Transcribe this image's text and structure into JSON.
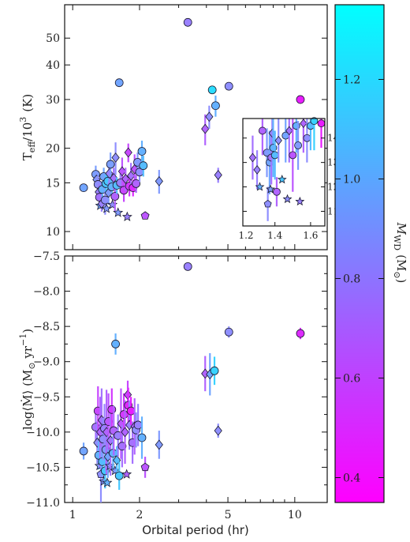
{
  "chart_data": [
    {
      "type": "scatter",
      "panel": "top",
      "ylabel_main": "T",
      "ylabel_sub": "eff",
      "ylabel_rest": "/10",
      "ylabel_sup": "3",
      "ylabel_unit": "(K)",
      "x_scale": "log",
      "y_scale": "log",
      "xlim": [
        0.92,
        14.0
      ],
      "ylim": [
        8.6,
        66
      ],
      "y_ticks": [
        10,
        15,
        20,
        30,
        40,
        50
      ],
      "y_tick_labels": [
        "10",
        "15",
        "20",
        "30",
        "40",
        "50"
      ],
      "points": [
        {
          "x": 1.12,
          "y": 14.4,
          "m": 0.95,
          "s": "c",
          "e": 0
        },
        {
          "x": 1.27,
          "y": 16.1,
          "m": 0.92,
          "s": "c",
          "e": 1.2
        },
        {
          "x": 1.28,
          "y": 15.4,
          "m": 0.88,
          "s": "d",
          "e": 1.0
        },
        {
          "x": 1.3,
          "y": 14.8,
          "m": 0.85,
          "s": "c",
          "e": 1.1
        },
        {
          "x": 1.31,
          "y": 13.9,
          "m": 0.8,
          "s": "d",
          "e": 1.0
        },
        {
          "x": 1.32,
          "y": 13.3,
          "m": 0.75,
          "s": "c",
          "e": 1.0
        },
        {
          "x": 1.33,
          "y": 12.4,
          "m": 0.95,
          "s": "st",
          "e": 0
        },
        {
          "x": 1.35,
          "y": 12.6,
          "m": 0.8,
          "s": "d",
          "e": 0.8
        },
        {
          "x": 1.36,
          "y": 14.2,
          "m": 1.0,
          "s": "c",
          "e": 1.0
        },
        {
          "x": 1.38,
          "y": 15.8,
          "m": 0.95,
          "s": "c",
          "e": 1.2
        },
        {
          "x": 1.4,
          "y": 13.0,
          "m": 0.85,
          "s": "c",
          "e": 1.5
        },
        {
          "x": 1.41,
          "y": 14.9,
          "m": 1.08,
          "s": "c",
          "e": 1.2
        },
        {
          "x": 1.42,
          "y": 12.1,
          "m": 0.9,
          "s": "st",
          "e": 0
        },
        {
          "x": 1.44,
          "y": 15.2,
          "m": 1.1,
          "s": "c",
          "e": 1.0
        },
        {
          "x": 1.45,
          "y": 13.8,
          "m": 0.9,
          "s": "d",
          "e": 1.3
        },
        {
          "x": 1.46,
          "y": 16.2,
          "m": 0.8,
          "s": "d",
          "e": 1.5
        },
        {
          "x": 1.48,
          "y": 17.5,
          "m": 0.92,
          "s": "c",
          "e": 1.8
        },
        {
          "x": 1.5,
          "y": 14.5,
          "m": 1.0,
          "s": "c",
          "e": 1.2
        },
        {
          "x": 1.51,
          "y": 12.5,
          "m": 0.85,
          "s": "st",
          "e": 0
        },
        {
          "x": 1.53,
          "y": 15.6,
          "m": 0.75,
          "s": "d",
          "e": 1.4
        },
        {
          "x": 1.55,
          "y": 13.4,
          "m": 0.7,
          "s": "c",
          "e": 1.6
        },
        {
          "x": 1.56,
          "y": 18.5,
          "m": 0.85,
          "s": "d",
          "e": 2.5
        },
        {
          "x": 1.58,
          "y": 14.7,
          "m": 1.05,
          "s": "c",
          "e": 1.0
        },
        {
          "x": 1.6,
          "y": 11.7,
          "m": 0.9,
          "s": "st",
          "e": 0
        },
        {
          "x": 1.62,
          "y": 34.5,
          "m": 0.95,
          "s": "c",
          "e": 0
        },
        {
          "x": 1.64,
          "y": 15.0,
          "m": 0.8,
          "s": "c",
          "e": 1.2
        },
        {
          "x": 1.67,
          "y": 16.5,
          "m": 0.65,
          "s": "d",
          "e": 2.0
        },
        {
          "x": 1.7,
          "y": 14.1,
          "m": 0.6,
          "s": "c",
          "e": 1.3
        },
        {
          "x": 1.73,
          "y": 15.5,
          "m": 0.7,
          "s": "d",
          "e": 1.5
        },
        {
          "x": 1.76,
          "y": 11.3,
          "m": 0.8,
          "s": "st",
          "e": 0
        },
        {
          "x": 1.78,
          "y": 19.3,
          "m": 0.6,
          "s": "d",
          "e": 1.5
        },
        {
          "x": 1.8,
          "y": 14.6,
          "m": 0.55,
          "s": "c",
          "e": 1.2
        },
        {
          "x": 1.83,
          "y": 15.9,
          "m": 0.75,
          "s": "d",
          "e": 1.8
        },
        {
          "x": 1.87,
          "y": 14.4,
          "m": 0.5,
          "s": "c",
          "e": 1.0
        },
        {
          "x": 1.9,
          "y": 16.8,
          "m": 0.65,
          "s": "d",
          "e": 2.2
        },
        {
          "x": 1.93,
          "y": 14.9,
          "m": 0.7,
          "s": "c",
          "e": 1.1
        },
        {
          "x": 1.96,
          "y": 17.8,
          "m": 0.9,
          "s": "c",
          "e": 1.5
        },
        {
          "x": 2.0,
          "y": 16.4,
          "m": 0.85,
          "s": "c",
          "e": 1.3
        },
        {
          "x": 2.05,
          "y": 19.5,
          "m": 1.0,
          "s": "c",
          "e": 1.8
        },
        {
          "x": 2.08,
          "y": 17.3,
          "m": 1.05,
          "s": "c",
          "e": 1.5
        },
        {
          "x": 2.12,
          "y": 11.4,
          "m": 0.65,
          "s": "p",
          "e": 0
        },
        {
          "x": 2.45,
          "y": 15.2,
          "m": 0.9,
          "s": "d",
          "e": 1.5
        },
        {
          "x": 3.3,
          "y": 57.0,
          "m": 0.8,
          "s": "c",
          "e": 0
        },
        {
          "x": 3.95,
          "y": 23.5,
          "m": 0.7,
          "s": "d",
          "e": 3.0
        },
        {
          "x": 4.12,
          "y": 26.0,
          "m": 0.85,
          "s": "d",
          "e": 2.5
        },
        {
          "x": 4.25,
          "y": 32.5,
          "m": 1.2,
          "s": "c",
          "e": 0
        },
        {
          "x": 4.4,
          "y": 28.5,
          "m": 1.0,
          "s": "c",
          "e": 2.5
        },
        {
          "x": 4.52,
          "y": 16.0,
          "m": 0.8,
          "s": "d",
          "e": 1.0
        },
        {
          "x": 5.05,
          "y": 33.5,
          "m": 0.85,
          "s": "c",
          "e": 0
        },
        {
          "x": 10.6,
          "y": 30.0,
          "m": 0.45,
          "s": "c",
          "e": 0
        }
      ]
    },
    {
      "type": "scatter",
      "panel": "inset",
      "x_scale": "linear",
      "y_scale": "linear",
      "xlim": [
        1.22,
        1.68
      ],
      "ylim": [
        10.4,
        14.8
      ],
      "x_ticks": [
        1.2,
        1.4,
        1.6
      ],
      "x_tick_labels": [
        "1.2",
        "1.4",
        "1.6"
      ],
      "y_ticks": [
        11,
        12,
        13,
        14
      ],
      "y_tick_labels": [
        "11",
        "12",
        "13",
        "14"
      ],
      "points": [
        {
          "x": 1.275,
          "y": 13.2,
          "m": 0.75,
          "s": "d",
          "e": 0.9
        },
        {
          "x": 1.3,
          "y": 12.7,
          "m": 0.8,
          "s": "d",
          "e": 0.8
        },
        {
          "x": 1.315,
          "y": 12.0,
          "m": 1.0,
          "s": "st",
          "e": 0
        },
        {
          "x": 1.33,
          "y": 14.3,
          "m": 0.7,
          "s": "c",
          "e": 1.0
        },
        {
          "x": 1.355,
          "y": 13.4,
          "m": 0.9,
          "s": "c",
          "e": 1.0
        },
        {
          "x": 1.36,
          "y": 11.3,
          "m": 0.85,
          "s": "p",
          "e": 0.7
        },
        {
          "x": 1.37,
          "y": 13.0,
          "m": 0.95,
          "s": "c",
          "e": 1.3
        },
        {
          "x": 1.375,
          "y": 11.9,
          "m": 0.92,
          "s": "st",
          "e": 0
        },
        {
          "x": 1.38,
          "y": 13.2,
          "m": 0.75,
          "s": "c",
          "e": 1.1
        },
        {
          "x": 1.385,
          "y": 14.2,
          "m": 0.8,
          "s": "d",
          "e": 1.3
        },
        {
          "x": 1.39,
          "y": 13.6,
          "m": 1.0,
          "s": "c",
          "e": 1.2
        },
        {
          "x": 1.4,
          "y": 13.3,
          "m": 1.05,
          "s": "c",
          "e": 1.0
        },
        {
          "x": 1.41,
          "y": 11.8,
          "m": 0.7,
          "s": "c",
          "e": 0.6
        },
        {
          "x": 1.42,
          "y": 13.9,
          "m": 0.85,
          "s": "d",
          "e": 0.9
        },
        {
          "x": 1.44,
          "y": 12.3,
          "m": 1.1,
          "s": "st",
          "e": 0
        },
        {
          "x": 1.46,
          "y": 14.1,
          "m": 0.95,
          "s": "c",
          "e": 1.1
        },
        {
          "x": 1.47,
          "y": 11.5,
          "m": 0.85,
          "s": "st",
          "e": 0
        },
        {
          "x": 1.48,
          "y": 14.3,
          "m": 0.75,
          "s": "d",
          "e": 1.3
        },
        {
          "x": 1.5,
          "y": 13.3,
          "m": 0.65,
          "s": "c",
          "e": 1.5
        },
        {
          "x": 1.52,
          "y": 14.5,
          "m": 1.0,
          "s": "c",
          "e": 1.1
        },
        {
          "x": 1.53,
          "y": 13.7,
          "m": 0.9,
          "s": "c",
          "e": 1.0
        },
        {
          "x": 1.54,
          "y": 11.4,
          "m": 0.8,
          "s": "st",
          "e": 0
        },
        {
          "x": 1.56,
          "y": 14.6,
          "m": 0.7,
          "s": "d",
          "e": 1.2
        },
        {
          "x": 1.58,
          "y": 14.0,
          "m": 0.85,
          "s": "c",
          "e": 1.0
        },
        {
          "x": 1.6,
          "y": 14.5,
          "m": 1.05,
          "s": "c",
          "e": 1.0
        },
        {
          "x": 1.62,
          "y": 14.7,
          "m": 1.15,
          "s": "c",
          "e": 1.2
        },
        {
          "x": 1.66,
          "y": 14.6,
          "m": 0.45,
          "s": "c",
          "e": 1.0
        }
      ]
    },
    {
      "type": "scatter",
      "panel": "bottom",
      "ylabel": "log⟨Ṁ⟩ (M",
      "ylabel_sub": "⊙",
      "ylabel_unit": " yr",
      "ylabel_sup": "−1",
      "ylabel_close": ")",
      "xlabel": "Orbital period (hr)",
      "x_scale": "log",
      "y_scale": "linear",
      "xlim": [
        0.92,
        14.0
      ],
      "ylim": [
        -11.0,
        -7.5
      ],
      "x_ticks": [
        1,
        2,
        5,
        10
      ],
      "x_tick_labels": [
        "1",
        "2",
        "5",
        "10"
      ],
      "y_ticks": [
        -11.0,
        -10.5,
        -10.0,
        -9.5,
        -9.0,
        -8.5,
        -8.0,
        -7.5
      ],
      "y_tick_labels": [
        "−11.0",
        "−10.5",
        "−10.0",
        "−9.5",
        "−9.0",
        "−8.5",
        "−8.0",
        "−7.5"
      ],
      "points": [
        {
          "x": 1.12,
          "y": -10.27,
          "m": 0.95,
          "s": "c",
          "e": 0.12
        },
        {
          "x": 1.27,
          "y": -9.93,
          "m": 0.75,
          "s": "c",
          "e": 0.25
        },
        {
          "x": 1.29,
          "y": -10.15,
          "m": 0.85,
          "s": "d",
          "e": 0.3
        },
        {
          "x": 1.3,
          "y": -9.7,
          "m": 0.6,
          "s": "c",
          "e": 0.35
        },
        {
          "x": 1.31,
          "y": -10.33,
          "m": 1.0,
          "s": "c",
          "e": 0.2
        },
        {
          "x": 1.32,
          "y": -10.48,
          "m": 0.9,
          "s": "st",
          "e": 0
        },
        {
          "x": 1.33,
          "y": -10.0,
          "m": 0.7,
          "s": "d",
          "e": 0.5
        },
        {
          "x": 1.34,
          "y": -10.6,
          "m": 0.85,
          "s": "p",
          "e": 0.4
        },
        {
          "x": 1.35,
          "y": -9.83,
          "m": 0.75,
          "s": "d",
          "e": 0.45
        },
        {
          "x": 1.36,
          "y": -10.42,
          "m": 1.05,
          "s": "c",
          "e": 0.2
        },
        {
          "x": 1.37,
          "y": -10.1,
          "m": 0.85,
          "s": "c",
          "e": 0.3
        },
        {
          "x": 1.38,
          "y": -10.7,
          "m": 0.9,
          "s": "st",
          "e": 0
        },
        {
          "x": 1.39,
          "y": -9.95,
          "m": 0.8,
          "s": "c",
          "e": 0.35
        },
        {
          "x": 1.4,
          "y": -10.55,
          "m": 1.1,
          "s": "c",
          "e": 0.25
        },
        {
          "x": 1.41,
          "y": -10.25,
          "m": 0.9,
          "s": "c",
          "e": 0.3
        },
        {
          "x": 1.42,
          "y": -10.0,
          "m": 0.7,
          "s": "d",
          "e": 0.6
        },
        {
          "x": 1.43,
          "y": -10.72,
          "m": 1.0,
          "s": "st",
          "e": 0
        },
        {
          "x": 1.44,
          "y": -10.35,
          "m": 0.95,
          "s": "d",
          "e": 0.3
        },
        {
          "x": 1.45,
          "y": -9.85,
          "m": 0.65,
          "s": "c",
          "e": 0.4
        },
        {
          "x": 1.47,
          "y": -10.48,
          "m": 0.85,
          "s": "st",
          "e": 0
        },
        {
          "x": 1.48,
          "y": -10.12,
          "m": 0.75,
          "s": "d",
          "e": 0.5
        },
        {
          "x": 1.5,
          "y": -9.68,
          "m": 0.55,
          "s": "c",
          "e": 0.3
        },
        {
          "x": 1.52,
          "y": -10.3,
          "m": 1.0,
          "s": "c",
          "e": 0.25
        },
        {
          "x": 1.53,
          "y": -9.98,
          "m": 0.7,
          "s": "c",
          "e": 0.35
        },
        {
          "x": 1.55,
          "y": -10.55,
          "m": 0.9,
          "s": "st",
          "e": 0
        },
        {
          "x": 1.56,
          "y": -8.75,
          "m": 1.0,
          "s": "c",
          "e": 0.15
        },
        {
          "x": 1.58,
          "y": -10.4,
          "m": 1.05,
          "s": "d",
          "e": 0.2
        },
        {
          "x": 1.6,
          "y": -10.05,
          "m": 0.8,
          "s": "c",
          "e": 0.3
        },
        {
          "x": 1.62,
          "y": -10.62,
          "m": 1.1,
          "s": "c",
          "e": 0.2
        },
        {
          "x": 1.65,
          "y": -9.88,
          "m": 0.65,
          "s": "d",
          "e": 0.5
        },
        {
          "x": 1.67,
          "y": -10.2,
          "m": 0.75,
          "s": "c",
          "e": 0.3
        },
        {
          "x": 1.7,
          "y": -9.75,
          "m": 0.55,
          "s": "c",
          "e": 0.3
        },
        {
          "x": 1.72,
          "y": -10.0,
          "m": 0.7,
          "s": "d",
          "e": 0.45
        },
        {
          "x": 1.75,
          "y": -10.6,
          "m": 0.7,
          "s": "st",
          "e": 0
        },
        {
          "x": 1.77,
          "y": -9.47,
          "m": 0.6,
          "s": "d",
          "e": 0.2
        },
        {
          "x": 1.78,
          "y": -9.62,
          "m": 0.5,
          "s": "c",
          "e": 0.25
        },
        {
          "x": 1.8,
          "y": -9.9,
          "m": 0.8,
          "s": "d",
          "e": 0.35
        },
        {
          "x": 1.83,
          "y": -9.7,
          "m": 0.45,
          "s": "c",
          "e": 0.2
        },
        {
          "x": 1.86,
          "y": -10.15,
          "m": 0.75,
          "s": "c",
          "e": 0.3
        },
        {
          "x": 1.9,
          "y": -9.92,
          "m": 0.7,
          "s": "d",
          "e": 0.4
        },
        {
          "x": 1.93,
          "y": -9.97,
          "m": 0.85,
          "s": "c",
          "e": 0.25
        },
        {
          "x": 1.97,
          "y": -9.9,
          "m": 0.8,
          "s": "c",
          "e": 0.3
        },
        {
          "x": 2.05,
          "y": -10.08,
          "m": 1.0,
          "s": "c",
          "e": 0.3
        },
        {
          "x": 2.12,
          "y": -10.5,
          "m": 0.65,
          "s": "p",
          "e": 0.15
        },
        {
          "x": 2.45,
          "y": -10.18,
          "m": 0.9,
          "s": "d",
          "e": 0.2
        },
        {
          "x": 3.3,
          "y": -7.65,
          "m": 0.8,
          "s": "c",
          "e": 0
        },
        {
          "x": 3.95,
          "y": -9.17,
          "m": 0.7,
          "s": "d",
          "e": 0.25
        },
        {
          "x": 4.15,
          "y": -9.18,
          "m": 0.95,
          "s": "d",
          "e": 0.3
        },
        {
          "x": 4.35,
          "y": -9.13,
          "m": 1.15,
          "s": "c",
          "e": 0.2
        },
        {
          "x": 4.52,
          "y": -9.98,
          "m": 0.85,
          "s": "d",
          "e": 0.1
        },
        {
          "x": 5.05,
          "y": -8.58,
          "m": 0.85,
          "s": "c",
          "e": 0.08
        },
        {
          "x": 10.6,
          "y": -8.6,
          "m": 0.5,
          "s": "c",
          "e": 0.08
        }
      ]
    },
    {
      "type": "colorbar",
      "label": "M",
      "label_sub": "WD",
      "label_unit": "(M",
      "label_unit_sub": "⊙",
      "label_close": ")",
      "range": [
        0.35,
        1.35
      ],
      "ticks": [
        0.4,
        0.6,
        0.8,
        1.0,
        1.2
      ],
      "tick_labels": [
        "0.4",
        "0.6",
        "0.8",
        "1.0",
        "1.2"
      ],
      "color_low": "#ff00ff",
      "color_mid": "#8f8fff",
      "color_high": "#00ffff"
    }
  ]
}
